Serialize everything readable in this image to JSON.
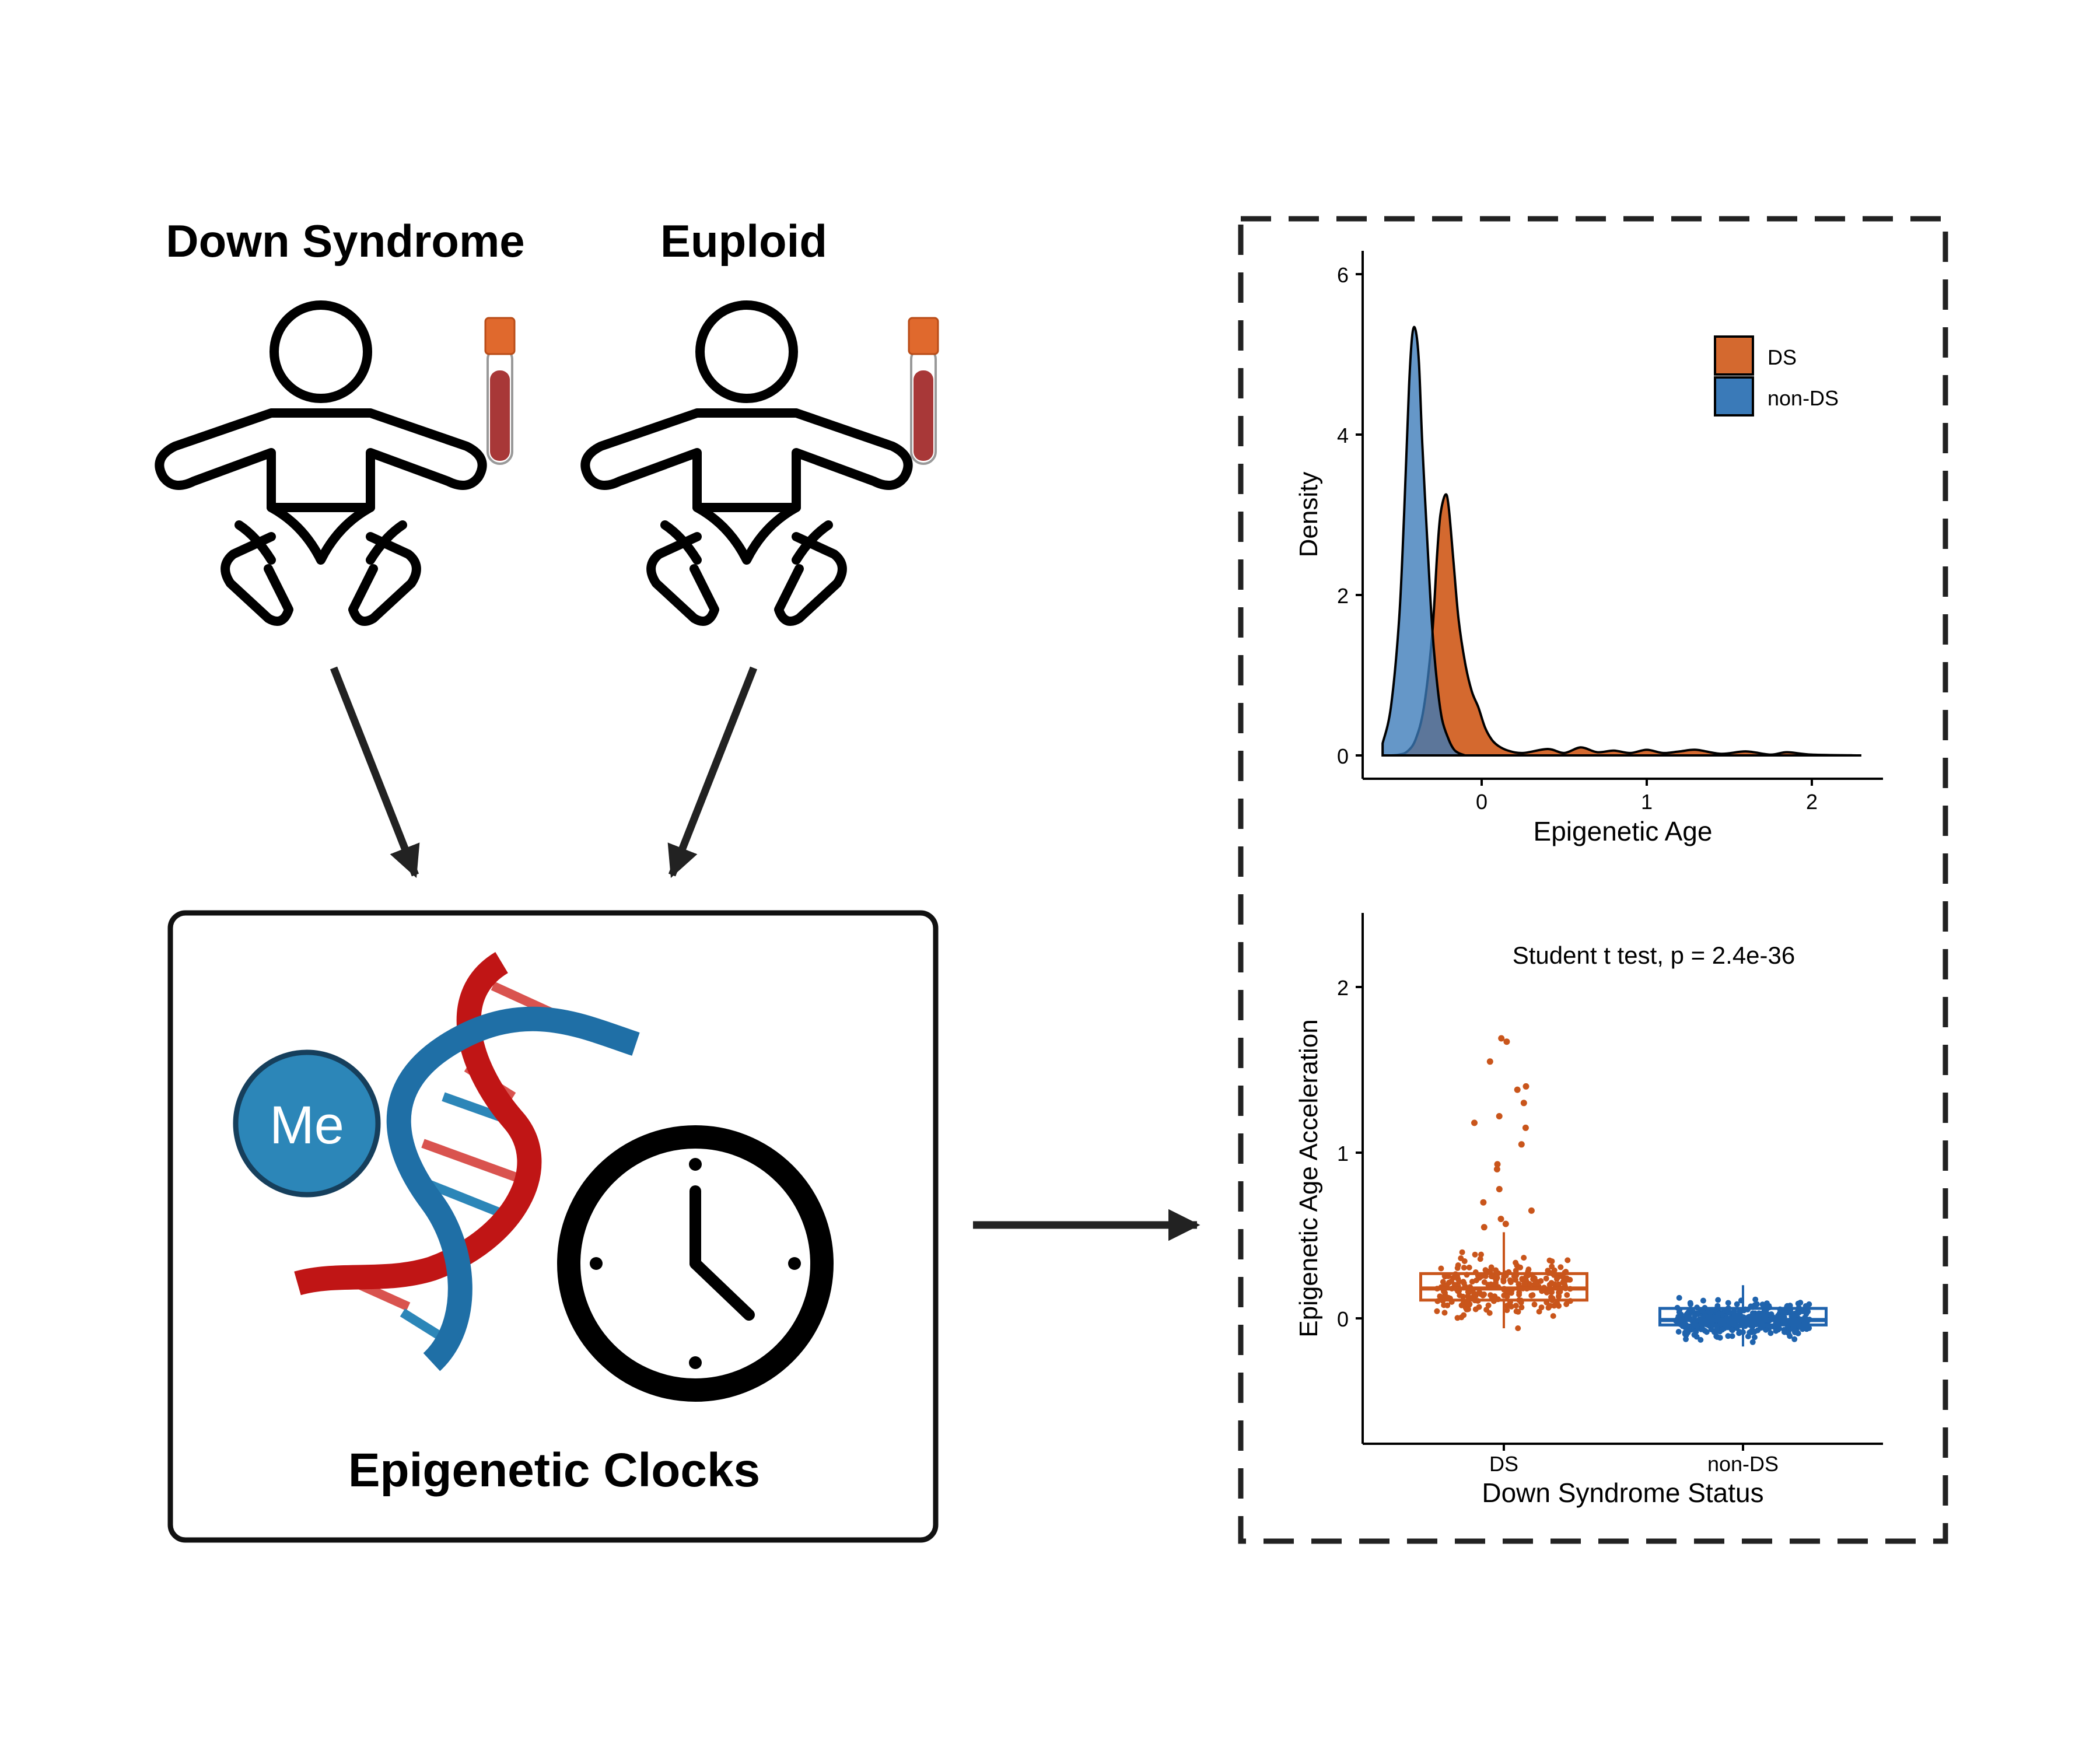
{
  "groups": {
    "ds_label": "Down Syndrome",
    "euploid_label": "Euploid"
  },
  "clock_box": {
    "title": "Epigenetic Clocks",
    "methyl_label": "Me"
  },
  "colors": {
    "ds": "#d4692f",
    "non_ds": "#3a7ab8",
    "ds_points": "#c9551b",
    "non_ds_points": "#1f63ad",
    "tube_cap": "#e0692d",
    "tube_blood": "#a83838",
    "me_circle": "#2c86b8",
    "dna_red": "#c01515",
    "dna_blue": "#1f6fa6"
  },
  "icons": [
    "baby-icon",
    "blood-tube-icon",
    "dna-helix-icon",
    "clock-icon",
    "arrow-icon"
  ],
  "chart_data": [
    {
      "type": "area",
      "kind": "density",
      "xlabel": "Epigenetic Age",
      "ylabel": "Density",
      "xlim": [
        -0.7,
        2.45
      ],
      "ylim": [
        -0.3,
        6.3
      ],
      "xticks": [
        0,
        1,
        2
      ],
      "yticks": [
        0,
        2,
        4,
        6
      ],
      "legend": {
        "position": "top-right",
        "entries": [
          "DS",
          "non-DS"
        ]
      },
      "series": [
        {
          "name": "DS",
          "color": "#d4692f",
          "x": [
            -0.55,
            -0.5,
            -0.45,
            -0.4,
            -0.35,
            -0.3,
            -0.27,
            -0.25,
            -0.22,
            -0.2,
            -0.17,
            -0.14,
            -0.1,
            -0.06,
            -0.02,
            0.02,
            0.06,
            0.1,
            0.16,
            0.25,
            0.4,
            0.5,
            0.6,
            0.7,
            0.8,
            0.9,
            1.0,
            1.1,
            1.2,
            1.3,
            1.45,
            1.6,
            1.75,
            1.85,
            2.0,
            2.3
          ],
          "y": [
            0.0,
            0.01,
            0.05,
            0.2,
            0.6,
            1.5,
            2.5,
            3.0,
            3.25,
            3.1,
            2.4,
            1.7,
            1.15,
            0.8,
            0.6,
            0.35,
            0.2,
            0.12,
            0.06,
            0.03,
            0.08,
            0.03,
            0.1,
            0.04,
            0.06,
            0.03,
            0.07,
            0.03,
            0.05,
            0.07,
            0.02,
            0.05,
            0.01,
            0.04,
            0.01,
            0.0
          ]
        },
        {
          "name": "non-DS",
          "color": "#3a7ab8",
          "x": [
            -0.6,
            -0.55,
            -0.5,
            -0.47,
            -0.44,
            -0.42,
            -0.4,
            -0.38,
            -0.36,
            -0.33,
            -0.3,
            -0.27,
            -0.24,
            -0.2,
            -0.17,
            -0.14,
            -0.1
          ],
          "y": [
            0.15,
            0.6,
            1.7,
            3.0,
            4.6,
            5.25,
            5.3,
            4.9,
            3.9,
            2.7,
            1.6,
            0.9,
            0.45,
            0.2,
            0.08,
            0.03,
            0.0
          ]
        }
      ]
    },
    {
      "type": "scatter",
      "kind": "box-with-jitter",
      "annotation": "Student t test, p = 2.4e-36",
      "xlabel": "Down Syndrome Status",
      "ylabel": "Epigenetic Age Acceleration",
      "categories": [
        "DS",
        "non-DS"
      ],
      "ylim": [
        -0.75,
        2.45
      ],
      "yticks": [
        0,
        1,
        2
      ],
      "boxes": [
        {
          "name": "DS",
          "q1": 0.11,
          "median": 0.18,
          "q3": 0.27,
          "whisker_low": -0.06,
          "whisker_high": 0.52,
          "color": "#c9551b"
        },
        {
          "name": "non-DS",
          "q1": -0.04,
          "median": -0.01,
          "q3": 0.06,
          "whisker_low": -0.17,
          "whisker_high": 0.2,
          "color": "#1f63ad"
        }
      ],
      "outliers": {
        "DS": [
          1.69,
          1.67,
          1.55,
          1.4,
          1.38,
          1.3,
          1.22,
          1.18,
          1.15,
          1.05,
          0.93,
          0.9,
          0.78,
          0.7,
          0.65,
          0.6,
          0.57,
          0.55
        ]
      },
      "jitter_counts": {
        "DS": 260,
        "non-DS": 420
      }
    }
  ]
}
